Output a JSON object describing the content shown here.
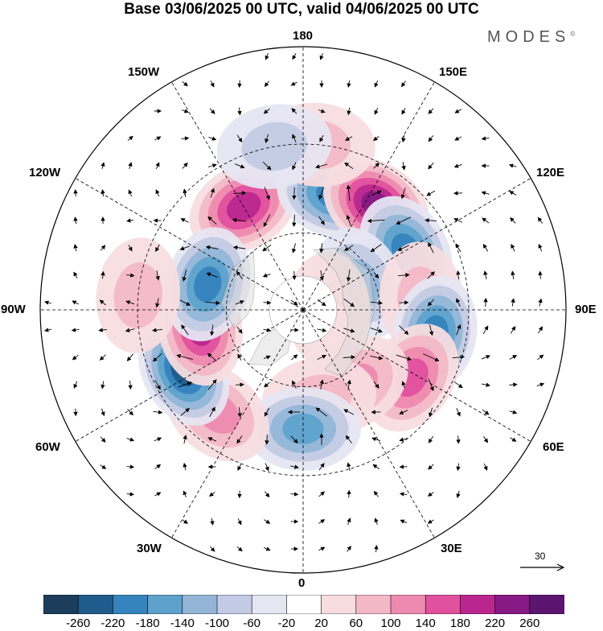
{
  "title": "Base 03/06/2025 00 UTC, valid 04/06/2025 00 UTC",
  "brand": "MODES",
  "brand_mark": "©",
  "longitude_labels": {
    "lon_180": "180",
    "lon_150W": "150W",
    "lon_150E": "150E",
    "lon_120W": "120W",
    "lon_120E": "120E",
    "lon_90W": "90W",
    "lon_90E": "90E",
    "lon_60W": "60W",
    "lon_60E": "60E",
    "lon_30W": "30W",
    "lon_30E": "30E",
    "lon_0": "0"
  },
  "reference_vector": "30",
  "colorbar": {
    "ticks": [
      "-260",
      "-220",
      "-180",
      "-140",
      "-100",
      "-60",
      "-20",
      "20",
      "60",
      "100",
      "140",
      "180",
      "220",
      "260"
    ],
    "colors": [
      "#1c3d5c",
      "#1f5c8c",
      "#3584bd",
      "#5ea2cc",
      "#93b6d8",
      "#c3cbe4",
      "#e6e6f2",
      "#ffffff",
      "#f7dde0",
      "#f3b8c6",
      "#ee8ab0",
      "#e0519e",
      "#b9278e",
      "#871a84",
      "#5b146f"
    ]
  },
  "map": {
    "projection": "north polar stereographic",
    "anomalies": [
      {
        "lon": -150,
        "lat": 45,
        "value": 180
      },
      {
        "lon": 165,
        "lat": 45,
        "value": -180
      },
      {
        "lon": 145,
        "lat": 42,
        "value": 220
      },
      {
        "lon": 120,
        "lat": 45,
        "value": -180
      },
      {
        "lon": 115,
        "lat": 65,
        "value": -100
      },
      {
        "lon": 95,
        "lat": 45,
        "value": 60
      },
      {
        "lon": 80,
        "lat": 40,
        "value": -180
      },
      {
        "lon": 58,
        "lat": 42,
        "value": 140
      },
      {
        "lon": 35,
        "lat": 55,
        "value": 100
      },
      {
        "lon": 10,
        "lat": 55,
        "value": 60
      },
      {
        "lon": 0,
        "lat": 45,
        "value": -140
      },
      {
        "lon": -40,
        "lat": 40,
        "value": 120
      },
      {
        "lon": -63,
        "lat": 40,
        "value": -220
      },
      {
        "lon": -80,
        "lat": 50,
        "value": 180
      },
      {
        "lon": -105,
        "lat": 52,
        "value": -180
      },
      {
        "lon": -95,
        "lat": 30,
        "value": 60
      },
      {
        "lon": 175,
        "lat": 30,
        "value": 60
      },
      {
        "lon": -170,
        "lat": 30,
        "value": -60
      },
      {
        "lon": 90,
        "lat": 80,
        "value": 20
      }
    ]
  }
}
